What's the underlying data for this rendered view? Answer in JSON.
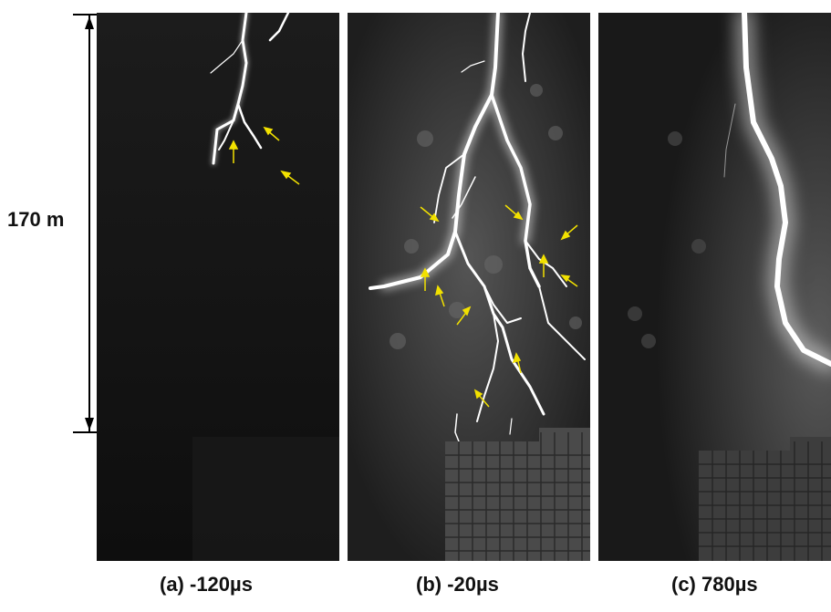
{
  "scale": {
    "label": "170 m"
  },
  "panels": [
    {
      "caption": "(a) -120µs"
    },
    {
      "caption": "(b) -20µs"
    },
    {
      "caption": "(c) 780µs"
    }
  ],
  "colors": {
    "arrow": "#f2e100",
    "lightning": "#ffffff",
    "background": "#151515"
  }
}
